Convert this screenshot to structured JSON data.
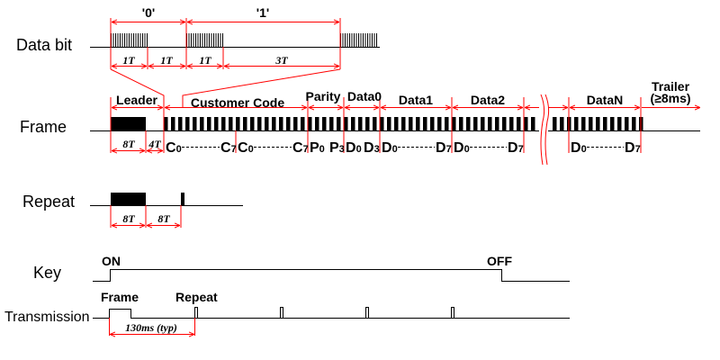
{
  "row_labels": {
    "data_bit": "Data bit",
    "frame": "Frame",
    "repeat": "Repeat",
    "key": "Key",
    "transmission": "Transmission"
  },
  "data_bit": {
    "zero": "'0'",
    "one": "'1'",
    "t1": "1T",
    "t2": "1T",
    "t3": "1T",
    "t4": "3T"
  },
  "frame": {
    "leader": "Leader",
    "customer_code": "Customer Code",
    "parity": "Parity",
    "data0": "Data0",
    "data1": "Data1",
    "data2": "Data2",
    "dataN": "DataN",
    "trailer_line1": "Trailer",
    "trailer_line2": "(≥8ms)",
    "leader_t": "8T",
    "gap_t": "4T",
    "bits": [
      "C0",
      "C7",
      "C0",
      "C7",
      "P0",
      "P3",
      "D0",
      "D3",
      "D0",
      "D7",
      "D0",
      "D7",
      "D0",
      "D7"
    ]
  },
  "repeat": {
    "t1": "8T",
    "t2": "8T"
  },
  "key": {
    "on": "ON",
    "off": "OFF"
  },
  "transmission": {
    "frame": "Frame",
    "repeat": "Repeat",
    "period": "130ms (typ)"
  },
  "colors": {
    "signal": "#000000",
    "annotation": "#ff0000"
  }
}
